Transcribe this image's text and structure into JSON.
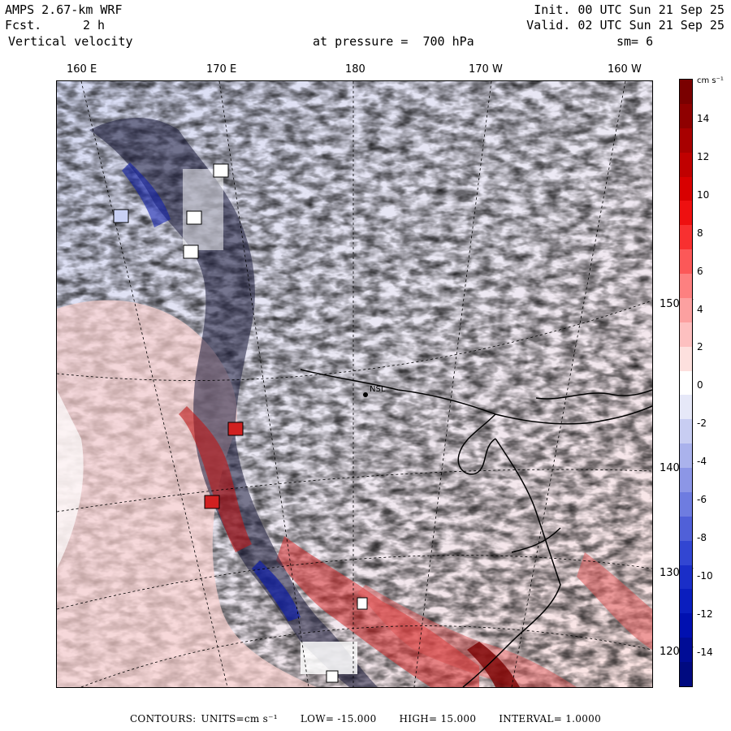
{
  "header": {
    "model": "AMPS 2.67-km WRF",
    "forecast_label": "Fcst.",
    "forecast_value": "2 h",
    "variable": "Vertical velocity",
    "init": "Init. 00 UTC Sun 21 Sep 25",
    "valid": "Valid. 02 UTC Sun 21 Sep 25",
    "level": "at pressure =  700 hPa",
    "smoothing": "sm= 6"
  },
  "longitude_labels": [
    "160 E",
    "170 E",
    "180",
    "170 W",
    "160 W"
  ],
  "latitude_labels": [
    "150 W",
    "140 W",
    "130 W",
    "120 W"
  ],
  "colorbar": {
    "units": "cm s⁻¹",
    "ticks": [
      "14",
      "12",
      "10",
      "8",
      "6",
      "4",
      "2",
      "0",
      "-2",
      "-4",
      "-6",
      "-8",
      "-10",
      "-12",
      "-14"
    ],
    "colors": [
      "#7a0000",
      "#8f0000",
      "#a80000",
      "#c00000",
      "#d80000",
      "#ee1010",
      "#f83030",
      "#fc5858",
      "#fd8080",
      "#fca0a0",
      "#fdc0c0",
      "#fde0de",
      "#ffffff",
      "#e6e8f8",
      "#c8cdf2",
      "#aab2ec",
      "#8c96e6",
      "#6e7ce0",
      "#5060d8",
      "#3246d2",
      "#1a2ec8",
      "#0a1ebe",
      "#0010b0",
      "#000c96",
      "#000a80"
    ]
  },
  "map": {
    "place_labels": [
      "NSL"
    ],
    "colors": {
      "up": "#d02020",
      "down": "#2030c0",
      "weak_up": "#fcd0cc",
      "weak_down": "#d8dcf4",
      "ice": "#ffffff"
    }
  },
  "footer": {
    "contours_label": "CONTOURS:",
    "units": "UNITS=cm s⁻¹",
    "low": "LOW= -15.000",
    "high": "HIGH=  15.000",
    "interval": "INTERVAL=   1.0000"
  }
}
